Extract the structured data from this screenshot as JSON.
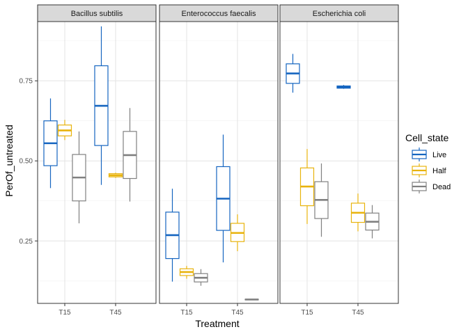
{
  "chart_data": {
    "type": "boxplot",
    "xlabel": "Treatment",
    "ylabel": "PerOf_untreated",
    "ylim": [
      0.055,
      0.935
    ],
    "y_ticks": [
      0.25,
      0.5,
      0.75
    ],
    "y_tick_labels": [
      "0.25",
      "0.50",
      "0.75"
    ],
    "categories": [
      "T15",
      "T45"
    ],
    "facets": [
      "Bacillus subtilis",
      "Enterococcus faecalis",
      "Escherichia coli"
    ],
    "legend": {
      "title": "Cell_state",
      "position": "right",
      "entries": [
        {
          "name": "Live",
          "color": "#1565c0"
        },
        {
          "name": "Half",
          "color": "#e8b30c"
        },
        {
          "name": "Dead",
          "color": "#808080"
        }
      ]
    },
    "grid": true,
    "boxes": [
      {
        "facet": "Bacillus subtilis",
        "x": "T15",
        "state": "Live",
        "min": 0.415,
        "q1": 0.485,
        "median": 0.555,
        "q3": 0.625,
        "max": 0.695
      },
      {
        "facet": "Bacillus subtilis",
        "x": "T15",
        "state": "Half",
        "min": 0.565,
        "q1": 0.578,
        "median": 0.595,
        "q3": 0.612,
        "max": 0.628
      },
      {
        "facet": "Bacillus subtilis",
        "x": "T15",
        "state": "Dead",
        "min": 0.305,
        "q1": 0.375,
        "median": 0.448,
        "q3": 0.52,
        "max": 0.592
      },
      {
        "facet": "Bacillus subtilis",
        "x": "T45",
        "state": "Live",
        "min": 0.425,
        "q1": 0.548,
        "median": 0.672,
        "q3": 0.797,
        "max": 0.92
      },
      {
        "facet": "Bacillus subtilis",
        "x": "T45",
        "state": "Half",
        "min": 0.447,
        "q1": 0.45,
        "median": 0.455,
        "q3": 0.46,
        "max": 0.463
      },
      {
        "facet": "Bacillus subtilis",
        "x": "T45",
        "state": "Dead",
        "min": 0.373,
        "q1": 0.445,
        "median": 0.518,
        "q3": 0.592,
        "max": 0.665
      },
      {
        "facet": "Enterococcus faecalis",
        "x": "T15",
        "state": "Live",
        "min": 0.123,
        "q1": 0.195,
        "median": 0.268,
        "q3": 0.34,
        "max": 0.413
      },
      {
        "facet": "Enterococcus faecalis",
        "x": "T15",
        "state": "Half",
        "min": 0.132,
        "q1": 0.142,
        "median": 0.153,
        "q3": 0.163,
        "max": 0.172
      },
      {
        "facet": "Enterococcus faecalis",
        "x": "T15",
        "state": "Dead",
        "min": 0.11,
        "q1": 0.122,
        "median": 0.135,
        "q3": 0.148,
        "max": 0.162
      },
      {
        "facet": "Enterococcus faecalis",
        "x": "T45",
        "state": "Live",
        "min": 0.183,
        "q1": 0.283,
        "median": 0.382,
        "q3": 0.482,
        "max": 0.582
      },
      {
        "facet": "Enterococcus faecalis",
        "x": "T45",
        "state": "Half",
        "min": 0.218,
        "q1": 0.248,
        "median": 0.275,
        "q3": 0.305,
        "max": 0.333
      },
      {
        "facet": "Enterococcus faecalis",
        "x": "T45",
        "state": "Dead",
        "min": 0.066,
        "q1": 0.066,
        "median": 0.067,
        "q3": 0.068,
        "max": 0.068
      },
      {
        "facet": "Escherichia coli",
        "x": "T15",
        "state": "Live",
        "min": 0.713,
        "q1": 0.742,
        "median": 0.773,
        "q3": 0.803,
        "max": 0.834
      },
      {
        "facet": "Escherichia coli",
        "x": "T15",
        "state": "Half",
        "min": 0.303,
        "q1": 0.36,
        "median": 0.42,
        "q3": 0.478,
        "max": 0.537
      },
      {
        "facet": "Escherichia coli",
        "x": "T15",
        "state": "Dead",
        "min": 0.263,
        "q1": 0.32,
        "median": 0.378,
        "q3": 0.435,
        "max": 0.492
      },
      {
        "facet": "Escherichia coli",
        "x": "T45",
        "state": "Live",
        "min": 0.725,
        "q1": 0.727,
        "median": 0.73,
        "q3": 0.734,
        "max": 0.737
      },
      {
        "facet": "Escherichia coli",
        "x": "T45",
        "state": "Half",
        "min": 0.28,
        "q1": 0.308,
        "median": 0.338,
        "q3": 0.368,
        "max": 0.398
      },
      {
        "facet": "Escherichia coli",
        "x": "T45",
        "state": "Dead",
        "min": 0.258,
        "q1": 0.284,
        "median": 0.31,
        "q3": 0.337,
        "max": 0.362
      }
    ]
  }
}
